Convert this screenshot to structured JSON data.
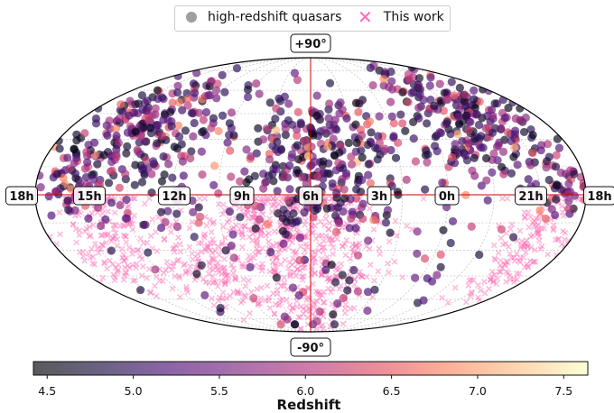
{
  "chart_data": {
    "type": "scatter",
    "projection": "mollweide",
    "series": [
      {
        "name": "high-redshift quasars",
        "marker": "circle",
        "color_by": "redshift"
      },
      {
        "name": "This work",
        "marker": "x",
        "color": "#ff69b4"
      }
    ],
    "labels": {
      "ra": [
        "18h",
        "15h",
        "12h",
        "9h",
        "6h",
        "3h",
        "0h",
        "21h",
        "18h"
      ],
      "dec_top": "+90°",
      "dec_bottom": "-90°"
    },
    "grid": true,
    "colorbar": {
      "label": "Redshift",
      "range": [
        4.42,
        7.64
      ],
      "ticks": [
        "4.5",
        "5.0",
        "5.5",
        "6.0",
        "6.5",
        "7.0",
        "7.5"
      ],
      "colormap": "magma"
    },
    "legend_position": "top-center"
  },
  "colors": {
    "highlight": "#ff69b4",
    "axis_red": "#cc0000"
  }
}
